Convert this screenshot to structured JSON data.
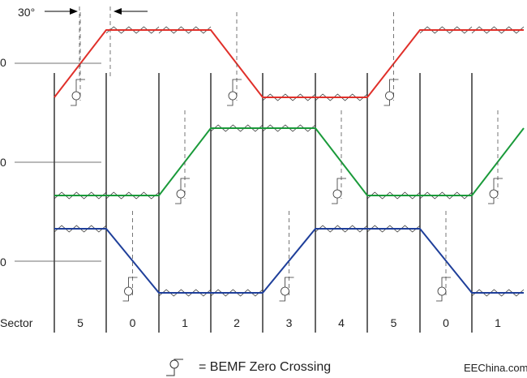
{
  "diagram": {
    "angle_label": "30°",
    "zero_labels": [
      "0",
      "0",
      "0"
    ],
    "sector_heading": "Sector",
    "sectors": [
      "5",
      "0",
      "1",
      "2",
      "3",
      "4",
      "5",
      "0",
      "1"
    ],
    "legend_text": "= BEMF Zero Crossing",
    "watermark": "EEChina.com",
    "phases": [
      {
        "color": "#e0302a",
        "pattern": [
          "rise",
          "high",
          "high",
          "fall",
          "low",
          "low",
          "rise",
          "high",
          "high"
        ]
      },
      {
        "color": "#1a9a3a",
        "pattern": [
          "low",
          "low",
          "rise",
          "high",
          "high",
          "fall",
          "low",
          "low",
          "rise"
        ]
      },
      {
        "color": "#1f3f9a",
        "pattern": [
          "high",
          "fall",
          "low",
          "low",
          "rise",
          "high",
          "high",
          "fall",
          "low"
        ]
      }
    ]
  }
}
